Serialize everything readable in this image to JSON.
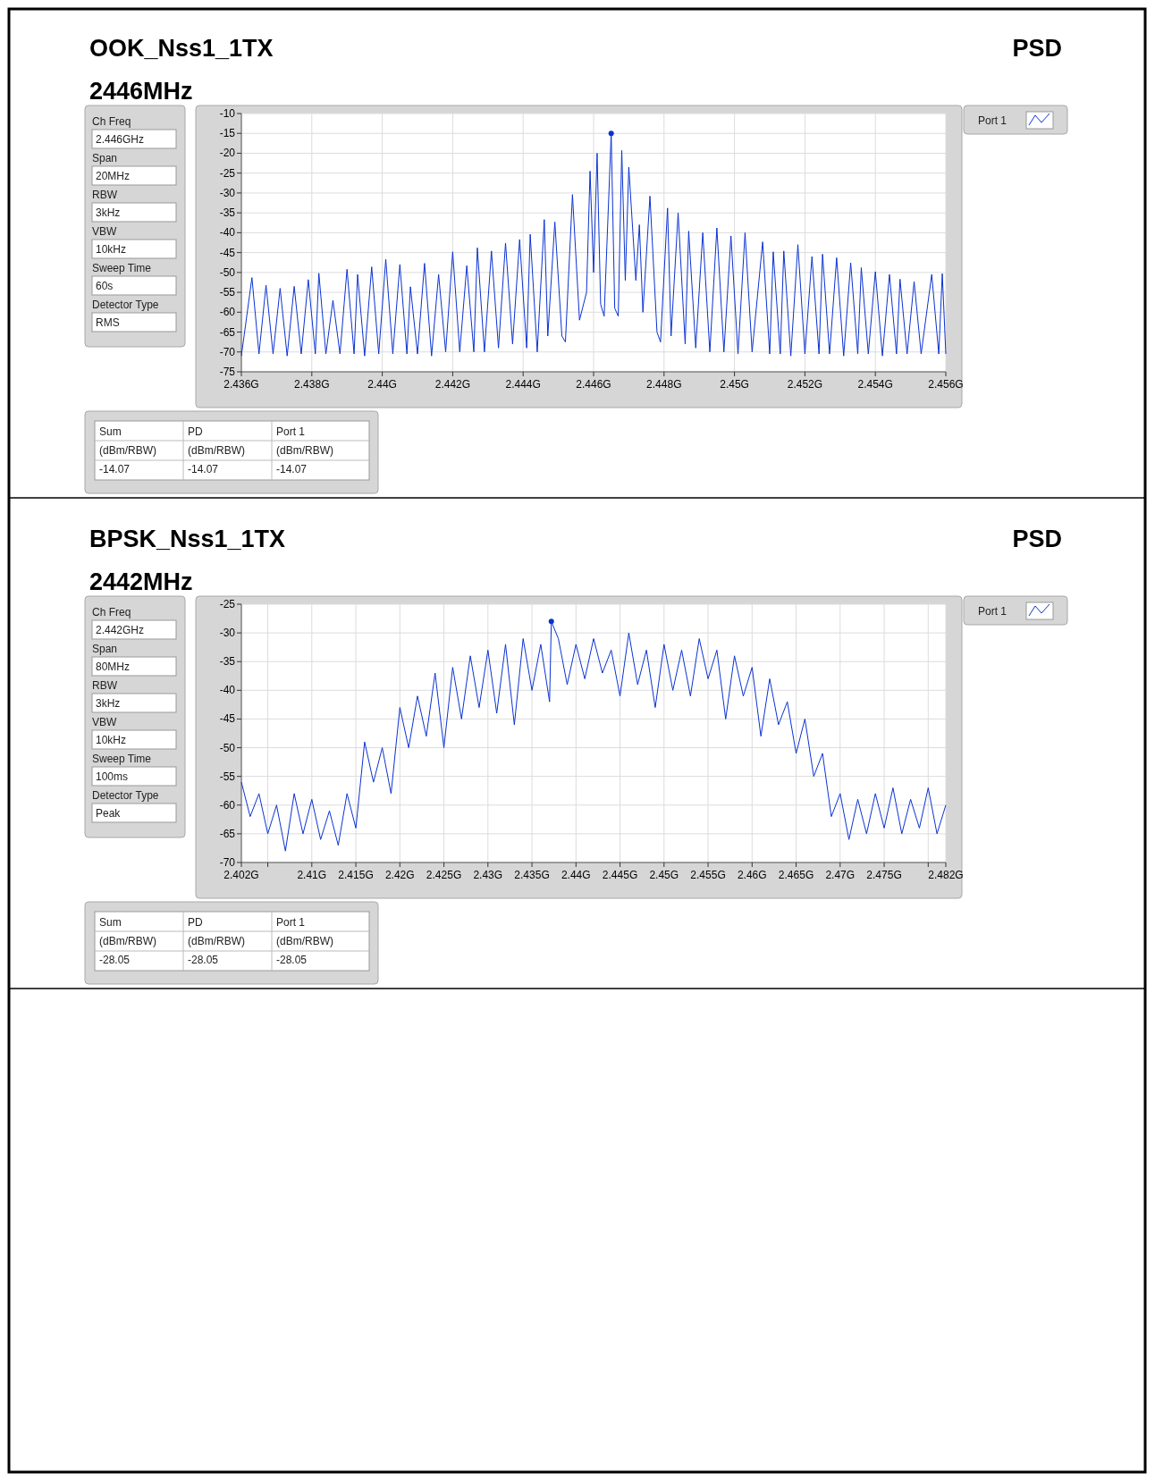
{
  "chart_data": [
    {
      "type": "line",
      "title": "OOK_Nss1_1TX",
      "subtitle": "2446MHz",
      "legend": "top right",
      "grid": true,
      "annotations": [
        "Ch Freq",
        "2.446GHz",
        "Span",
        "20MHz",
        "RBW",
        "3kHz",
        "VBW",
        "10kHz",
        "Sweep Time",
        "60s",
        "Detector Type",
        "RMS",
        "Sum",
        "PD",
        "Port 1",
        "(dBm/RBW)",
        "(dBm/RBW)",
        "(dBm/RBW)",
        "-14.07",
        "-14.07",
        "-14.07",
        "PSD"
      ],
      "xlim": [
        2.436,
        2.456
      ],
      "ylim": [
        -75,
        -10
      ],
      "xticks": [
        {
          "value": 2.436,
          "label": "2.436G"
        },
        {
          "value": 2.438,
          "label": "2.438G"
        },
        {
          "value": 2.44,
          "label": "2.44G"
        },
        {
          "value": 2.442,
          "label": "2.442G"
        },
        {
          "value": 2.444,
          "label": "2.444G"
        },
        {
          "value": 2.446,
          "label": "2.446G"
        },
        {
          "value": 2.448,
          "label": "2.448G"
        },
        {
          "value": 2.45,
          "label": "2.45G"
        },
        {
          "value": 2.452,
          "label": "2.452G"
        },
        {
          "value": 2.454,
          "label": "2.454G"
        },
        {
          "value": 2.456,
          "label": "2.456G"
        }
      ],
      "yticks": [
        -10,
        -15,
        -20,
        -25,
        -30,
        -35,
        -40,
        -45,
        -50,
        -55,
        -60,
        -65,
        -70,
        -75
      ],
      "series": [
        {
          "name": "Port 1",
          "color": "#0a32d2",
          "x": [
            2.436,
            2.4363,
            2.4365,
            2.4367,
            2.4369,
            2.4371,
            2.4373,
            2.4375,
            2.4377,
            2.4379,
            2.4381,
            2.4382,
            2.4384,
            2.4386,
            2.4388,
            2.439,
            2.4392,
            2.4393,
            2.4395,
            2.4397,
            2.4399,
            2.4401,
            2.4403,
            2.4405,
            2.4407,
            2.4408,
            2.441,
            2.4412,
            2.4414,
            2.4416,
            2.4418,
            2.442,
            2.4422,
            2.4424,
            2.4426,
            2.4427,
            2.4429,
            2.4431,
            2.4433,
            2.4435,
            2.4437,
            2.4439,
            2.4441,
            2.4442,
            2.4444,
            2.4446,
            2.4447,
            2.4449,
            2.4451,
            2.4452,
            2.4454,
            2.4456,
            2.4458,
            2.4459,
            2.446,
            2.4461,
            2.4462,
            2.4463,
            2.4465,
            2.4466,
            2.4467,
            2.4468,
            2.4469,
            2.447,
            2.4472,
            2.4473,
            2.4474,
            2.4476,
            2.4478,
            2.4479,
            2.4481,
            2.4482,
            2.4484,
            2.4486,
            2.4487,
            2.4489,
            2.4491,
            2.4493,
            2.4495,
            2.4497,
            2.4499,
            2.4501,
            2.4503,
            2.4505,
            2.4508,
            2.451,
            2.4511,
            2.4513,
            2.4514,
            2.4516,
            2.4518,
            2.452,
            2.4522,
            2.4524,
            2.4525,
            2.4527,
            2.4529,
            2.4531,
            2.4533,
            2.4535,
            2.4536,
            2.4538,
            2.454,
            2.4542,
            2.4544,
            2.4546,
            2.4547,
            2.4549,
            2.4551,
            2.4553,
            2.4556,
            2.4558,
            2.4559,
            2.456
          ],
          "values": [
            -71,
            -51.3,
            -70.5,
            -53.2,
            -70.5,
            -54,
            -71,
            -53.5,
            -70.5,
            -51.8,
            -70.5,
            -50.2,
            -70.5,
            -57,
            -70.5,
            -49.2,
            -70.5,
            -50.5,
            -71,
            -48.6,
            -70.5,
            -46.7,
            -70.5,
            -48,
            -70.5,
            -53.6,
            -70.5,
            -47.7,
            -71,
            -50.5,
            -70,
            -44.8,
            -70,
            -48.3,
            -70,
            -43.8,
            -70,
            -44.6,
            -69,
            -42.6,
            -68,
            -41.7,
            -69,
            -40.4,
            -70,
            -36.7,
            -66,
            -37.3,
            -66,
            -67.5,
            -30.4,
            -62,
            -55,
            -24.5,
            -50,
            -20,
            -58,
            -61,
            -15,
            -59,
            -61,
            -19.3,
            -52,
            -23.5,
            -52,
            -38,
            -60,
            -30.8,
            -65,
            -67.5,
            -33.8,
            -66,
            -35,
            -68,
            -39.6,
            -69,
            -40,
            -70,
            -38.8,
            -70,
            -40.8,
            -70.5,
            -40,
            -70,
            -42.3,
            -70.5,
            -44.8,
            -70.5,
            -44.6,
            -71,
            -43,
            -70.5,
            -46,
            -70.5,
            -45.4,
            -70.5,
            -46.3,
            -71,
            -47.6,
            -70.5,
            -48.8,
            -70.5,
            -49.8,
            -71,
            -50.5,
            -70.5,
            -51.7,
            -70.5,
            -52.3,
            -70.5,
            -50.5,
            -70.5,
            -50.3,
            -70.5
          ]
        },
        {
          "type": "scatter",
          "color": "#0a32d2",
          "marker": "circle",
          "x": [
            2.4465
          ],
          "values": [
            -15
          ]
        }
      ]
    },
    {
      "type": "line",
      "title": "BPSK_Nss1_1TX",
      "subtitle": "2442MHz",
      "legend": "top right",
      "grid": true,
      "annotations": [
        "Ch Freq",
        "2.442GHz",
        "Span",
        "80MHz",
        "RBW",
        "3kHz",
        "VBW",
        "10kHz",
        "Sweep Time",
        "100ms",
        "Detector Type",
        "Peak",
        "Sum",
        "PD",
        "Port 1",
        "(dBm/RBW)",
        "(dBm/RBW)",
        "(dBm/RBW)",
        "-28.05",
        "-28.05",
        "-28.05",
        "PSD"
      ],
      "xlim": [
        2.402,
        2.482
      ],
      "ylim": [
        -70,
        -25
      ],
      "xticks": [
        {
          "value": 2.402,
          "label": "2.402G"
        },
        {
          "value": 2.405,
          "label": null
        },
        {
          "value": 2.41,
          "label": "2.41G"
        },
        {
          "value": 2.415,
          "label": "2.415G"
        },
        {
          "value": 2.42,
          "label": "2.42G"
        },
        {
          "value": 2.425,
          "label": "2.425G"
        },
        {
          "value": 2.43,
          "label": "2.43G"
        },
        {
          "value": 2.435,
          "label": "2.435G"
        },
        {
          "value": 2.44,
          "label": "2.44G"
        },
        {
          "value": 2.445,
          "label": "2.445G"
        },
        {
          "value": 2.45,
          "label": "2.45G"
        },
        {
          "value": 2.455,
          "label": "2.455G"
        },
        {
          "value": 2.46,
          "label": "2.46G"
        },
        {
          "value": 2.465,
          "label": "2.465G"
        },
        {
          "value": 2.47,
          "label": "2.47G"
        },
        {
          "value": 2.475,
          "label": "2.475G"
        },
        {
          "value": 2.48,
          "label": null
        },
        {
          "value": 2.482,
          "label": "2.482G"
        }
      ],
      "yticks": [
        -25,
        -30,
        -35,
        -40,
        -45,
        -50,
        -55,
        -60,
        -65,
        -70
      ],
      "series": [
        {
          "name": "Port 1",
          "color": "#0a32d2",
          "x": [
            2.402,
            2.403,
            2.404,
            2.405,
            2.406,
            2.407,
            2.408,
            2.409,
            2.41,
            2.411,
            2.412,
            2.413,
            2.414,
            2.415,
            2.416,
            2.417,
            2.418,
            2.419,
            2.42,
            2.421,
            2.422,
            2.423,
            2.424,
            2.425,
            2.426,
            2.427,
            2.428,
            2.429,
            2.43,
            2.431,
            2.432,
            2.433,
            2.434,
            2.435,
            2.436,
            2.437,
            2.4372,
            2.438,
            2.439,
            2.44,
            2.441,
            2.442,
            2.443,
            2.444,
            2.445,
            2.446,
            2.447,
            2.448,
            2.449,
            2.45,
            2.451,
            2.452,
            2.453,
            2.454,
            2.455,
            2.456,
            2.457,
            2.458,
            2.459,
            2.46,
            2.461,
            2.462,
            2.463,
            2.464,
            2.465,
            2.466,
            2.467,
            2.468,
            2.469,
            2.47,
            2.471,
            2.472,
            2.473,
            2.474,
            2.475,
            2.476,
            2.477,
            2.478,
            2.479,
            2.48,
            2.481,
            2.482
          ],
          "values": [
            -56,
            -62,
            -58,
            -65,
            -60,
            -68,
            -58,
            -65,
            -59,
            -66,
            -61,
            -67,
            -58,
            -64,
            -49,
            -56,
            -50,
            -58,
            -43,
            -50,
            -41,
            -48,
            -37,
            -50,
            -36,
            -45,
            -34,
            -43,
            -33,
            -44,
            -32,
            -46,
            -31,
            -40,
            -32,
            -42,
            -28,
            -31,
            -39,
            -32,
            -38,
            -31,
            -37,
            -33,
            -41,
            -30,
            -39,
            -33,
            -43,
            -32,
            -40,
            -33,
            -41,
            -31,
            -38,
            -33,
            -45,
            -34,
            -41,
            -36,
            -48,
            -38,
            -46,
            -42,
            -51,
            -45,
            -55,
            -51,
            -62,
            -58,
            -66,
            -59,
            -65,
            -58,
            -64,
            -57,
            -65,
            -59,
            -64,
            -57,
            -65,
            -60
          ]
        },
        {
          "type": "scatter",
          "color": "#0a32d2",
          "marker": "circle",
          "x": [
            2.4372
          ],
          "values": [
            -28
          ]
        }
      ]
    }
  ]
}
